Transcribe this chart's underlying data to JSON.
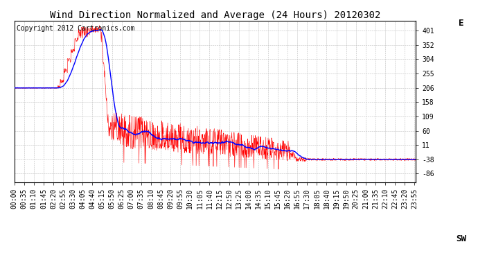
{
  "title": "Wind Direction Normalized and Average (24 Hours) 20120302",
  "copyright_text": "Copyright 2012 Cartronics.com",
  "yticks": [
    401,
    352,
    304,
    255,
    206,
    158,
    109,
    60,
    11,
    -38,
    -86
  ],
  "ytick_labels": [
    "401",
    "352",
    "304",
    "255",
    "206",
    "158",
    "109",
    "60",
    "11",
    "-38",
    "-86"
  ],
  "ylabel_right_top": "E",
  "ylabel_right_bottom": "SW",
  "ylim": [
    -115,
    435
  ],
  "bg_color": "#ffffff",
  "plot_bg_color": "#ffffff",
  "grid_color": "#bbbbbb",
  "line_color_raw": "#ff0000",
  "line_color_avg": "#0000ff",
  "title_fontsize": 10,
  "tick_fontsize": 7,
  "copyright_fontsize": 7
}
